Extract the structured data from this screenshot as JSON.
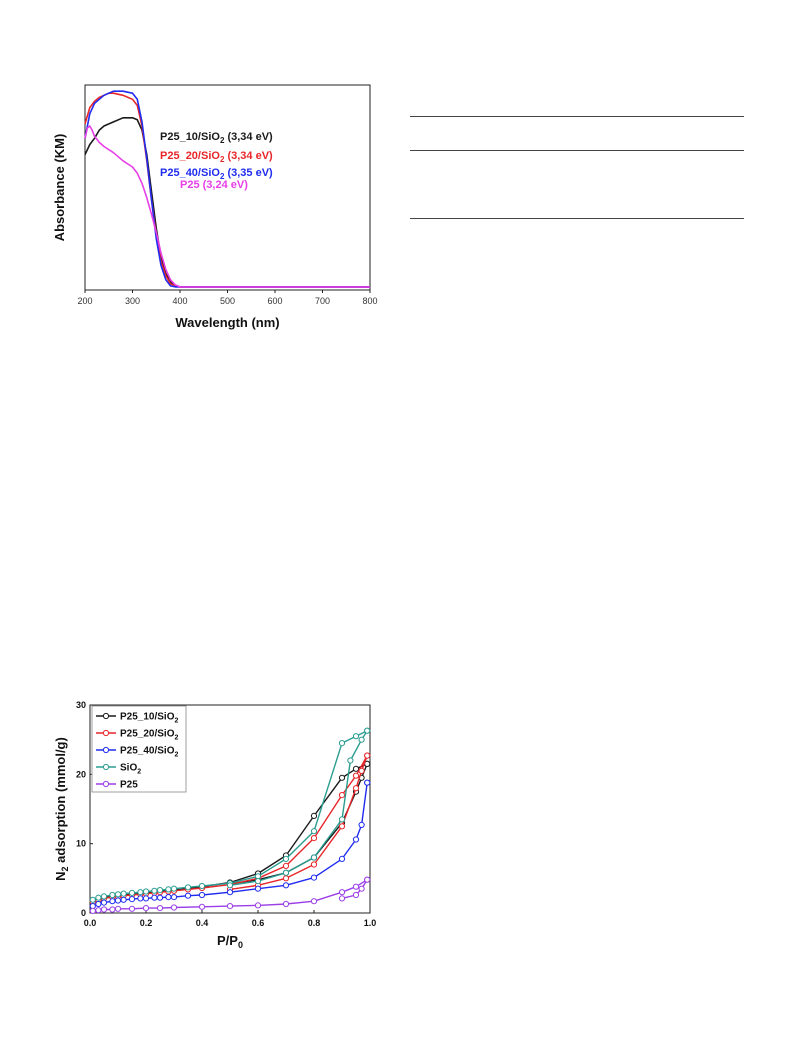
{
  "chart_data": [
    {
      "type": "line",
      "xlabel": "Wavelength (nm)",
      "ylabel": "Absorbance (KM)",
      "xlim": [
        200,
        800
      ],
      "ylim": [
        0,
        1.0
      ],
      "xticks": [
        "200",
        "300",
        "400",
        "500",
        "600",
        "700",
        "800"
      ],
      "grid": false,
      "series": [
        {
          "name": "P25_10/SiO₂ (3,34 eV)",
          "color": "#1a1a1a",
          "x": [
            200,
            210,
            220,
            230,
            240,
            260,
            280,
            300,
            310,
            320,
            330,
            340,
            350,
            360,
            370,
            380,
            390,
            400,
            420,
            500,
            600,
            700,
            800
          ],
          "y": [
            0.66,
            0.71,
            0.74,
            0.78,
            0.8,
            0.82,
            0.84,
            0.84,
            0.83,
            0.78,
            0.66,
            0.48,
            0.3,
            0.16,
            0.08,
            0.04,
            0.02,
            0.015,
            0.015,
            0.015,
            0.015,
            0.015,
            0.015
          ]
        },
        {
          "name": "P25_20/SiO₂ (3,34 eV)",
          "color": "#e8262a",
          "x": [
            200,
            210,
            220,
            230,
            240,
            250,
            260,
            280,
            300,
            310,
            320,
            330,
            340,
            350,
            360,
            370,
            380,
            390,
            400,
            420,
            500,
            600,
            700,
            800
          ],
          "y": [
            0.81,
            0.89,
            0.92,
            0.94,
            0.95,
            0.96,
            0.96,
            0.95,
            0.93,
            0.9,
            0.8,
            0.63,
            0.44,
            0.27,
            0.14,
            0.07,
            0.03,
            0.02,
            0.015,
            0.015,
            0.015,
            0.015,
            0.015,
            0.015
          ]
        },
        {
          "name": "P25_40/SiO₂ (3,35 eV)",
          "color": "#1f2cf0",
          "x": [
            200,
            210,
            220,
            230,
            240,
            250,
            260,
            280,
            300,
            310,
            320,
            330,
            340,
            350,
            360,
            370,
            380,
            390,
            400,
            420,
            500,
            600,
            700,
            800
          ],
          "y": [
            0.74,
            0.86,
            0.91,
            0.93,
            0.95,
            0.96,
            0.97,
            0.97,
            0.96,
            0.93,
            0.82,
            0.64,
            0.44,
            0.25,
            0.12,
            0.05,
            0.02,
            0.015,
            0.015,
            0.015,
            0.015,
            0.015,
            0.015,
            0.015
          ]
        },
        {
          "name": "P25 (3,24 eV)",
          "color": "#e83ee8",
          "x": [
            200,
            205,
            210,
            215,
            220,
            230,
            240,
            260,
            280,
            300,
            310,
            320,
            330,
            340,
            350,
            360,
            370,
            380,
            390,
            400,
            420,
            500,
            600,
            700,
            800
          ],
          "y": [
            0.74,
            0.79,
            0.8,
            0.78,
            0.75,
            0.72,
            0.7,
            0.67,
            0.63,
            0.6,
            0.57,
            0.52,
            0.45,
            0.37,
            0.28,
            0.18,
            0.1,
            0.05,
            0.025,
            0.015,
            0.015,
            0.015,
            0.015,
            0.015,
            0.015
          ]
        }
      ],
      "annotations": [
        {
          "base": "P25_10/SiO",
          "sub": "2",
          "rest": " (3,34 eV)",
          "color": "#1a1a1a"
        },
        {
          "base": "P25_20/SiO",
          "sub": "2",
          "rest": " (3,34 eV)",
          "color": "#e8262a"
        },
        {
          "base": "P25_40/SiO",
          "sub": "2",
          "rest": " (3,35 eV)",
          "color": "#1f2cf0"
        },
        {
          "base": "P25 (3,24 eV)",
          "sub": "",
          "rest": "",
          "color": "#e83ee8"
        }
      ]
    },
    {
      "type": "line",
      "xlabel": "P/P0",
      "ylabel": "N2 adsorption (mmol/g)",
      "xlim": [
        0.0,
        1.0
      ],
      "ylim": [
        0,
        30
      ],
      "xticks": [
        "0.0",
        "0.2",
        "0.4",
        "0.6",
        "0.8",
        "1.0"
      ],
      "yticks": [
        "0",
        "10",
        "20",
        "30"
      ],
      "grid": false,
      "legend_position": "top-left",
      "series": [
        {
          "name": "P25_10/SiO₂",
          "color": "#1a1a1a",
          "x": [
            0.01,
            0.03,
            0.05,
            0.08,
            0.1,
            0.12,
            0.15,
            0.18,
            0.2,
            0.23,
            0.25,
            0.28,
            0.3,
            0.35,
            0.4,
            0.5,
            0.6,
            0.7,
            0.8,
            0.9,
            0.95,
            0.99,
            0.99,
            0.97,
            0.95,
            0.9,
            0.8,
            0.7,
            0.6,
            0.5
          ],
          "y": [
            1.7,
            2.0,
            2.2,
            2.4,
            2.5,
            2.6,
            2.7,
            2.8,
            2.9,
            3.0,
            3.1,
            3.2,
            3.3,
            3.5,
            3.8,
            4.4,
            5.7,
            8.3,
            14.0,
            19.5,
            20.8,
            21.5,
            21.5,
            19.5,
            17.5,
            13.0,
            8.0,
            5.8,
            4.8,
            4.2
          ]
        },
        {
          "name": "P25_20/SiO₂",
          "color": "#e8262a",
          "x": [
            0.01,
            0.03,
            0.05,
            0.08,
            0.1,
            0.12,
            0.15,
            0.18,
            0.2,
            0.23,
            0.25,
            0.28,
            0.3,
            0.35,
            0.4,
            0.5,
            0.6,
            0.7,
            0.8,
            0.9,
            0.95,
            0.99,
            0.99,
            0.97,
            0.95,
            0.9,
            0.8,
            0.7,
            0.6,
            0.5
          ],
          "y": [
            1.6,
            1.9,
            2.1,
            2.3,
            2.4,
            2.5,
            2.6,
            2.7,
            2.8,
            2.9,
            3.0,
            3.1,
            3.2,
            3.4,
            3.6,
            4.1,
            5.0,
            6.8,
            10.8,
            17.0,
            19.8,
            22.7,
            22.7,
            20.5,
            18.0,
            12.5,
            7.0,
            5.0,
            4.0,
            3.4
          ]
        },
        {
          "name": "P25_40/SiO₂",
          "color": "#1f2cf0",
          "x": [
            0.01,
            0.03,
            0.05,
            0.08,
            0.1,
            0.12,
            0.15,
            0.18,
            0.2,
            0.23,
            0.25,
            0.28,
            0.3,
            0.35,
            0.4,
            0.5,
            0.6,
            0.7,
            0.8,
            0.9,
            0.95,
            0.97,
            0.99,
            0.99
          ],
          "y": [
            1.0,
            1.3,
            1.5,
            1.7,
            1.8,
            1.9,
            2.0,
            2.1,
            2.1,
            2.2,
            2.2,
            2.3,
            2.3,
            2.5,
            2.6,
            3.0,
            3.5,
            4.0,
            5.1,
            7.8,
            10.6,
            12.7,
            18.8,
            18.8
          ]
        },
        {
          "name": "SiO₂",
          "color": "#2a9d90",
          "x": [
            0.01,
            0.03,
            0.05,
            0.08,
            0.1,
            0.12,
            0.15,
            0.18,
            0.2,
            0.23,
            0.25,
            0.28,
            0.3,
            0.35,
            0.4,
            0.5,
            0.6,
            0.7,
            0.8,
            0.9,
            0.95,
            0.99,
            0.99,
            0.97,
            0.93,
            0.9,
            0.8,
            0.7,
            0.6,
            0.5
          ],
          "y": [
            1.9,
            2.2,
            2.4,
            2.6,
            2.7,
            2.8,
            2.9,
            3.0,
            3.1,
            3.2,
            3.3,
            3.4,
            3.5,
            3.7,
            3.9,
            4.3,
            5.3,
            7.8,
            11.8,
            24.5,
            25.5,
            26.3,
            26.3,
            25.0,
            22.0,
            13.5,
            8.0,
            5.8,
            4.6,
            4.0
          ]
        },
        {
          "name": "P25",
          "color": "#9b3ee8",
          "x": [
            0.01,
            0.03,
            0.05,
            0.08,
            0.1,
            0.15,
            0.2,
            0.25,
            0.3,
            0.4,
            0.5,
            0.6,
            0.7,
            0.8,
            0.9,
            0.95,
            0.99,
            0.99,
            0.97,
            0.95,
            0.9
          ],
          "y": [
            0.3,
            0.4,
            0.5,
            0.5,
            0.6,
            0.6,
            0.7,
            0.7,
            0.8,
            0.9,
            1.0,
            1.1,
            1.3,
            1.7,
            3.0,
            3.8,
            4.8,
            4.8,
            3.5,
            2.6,
            2.1
          ]
        }
      ]
    }
  ]
}
